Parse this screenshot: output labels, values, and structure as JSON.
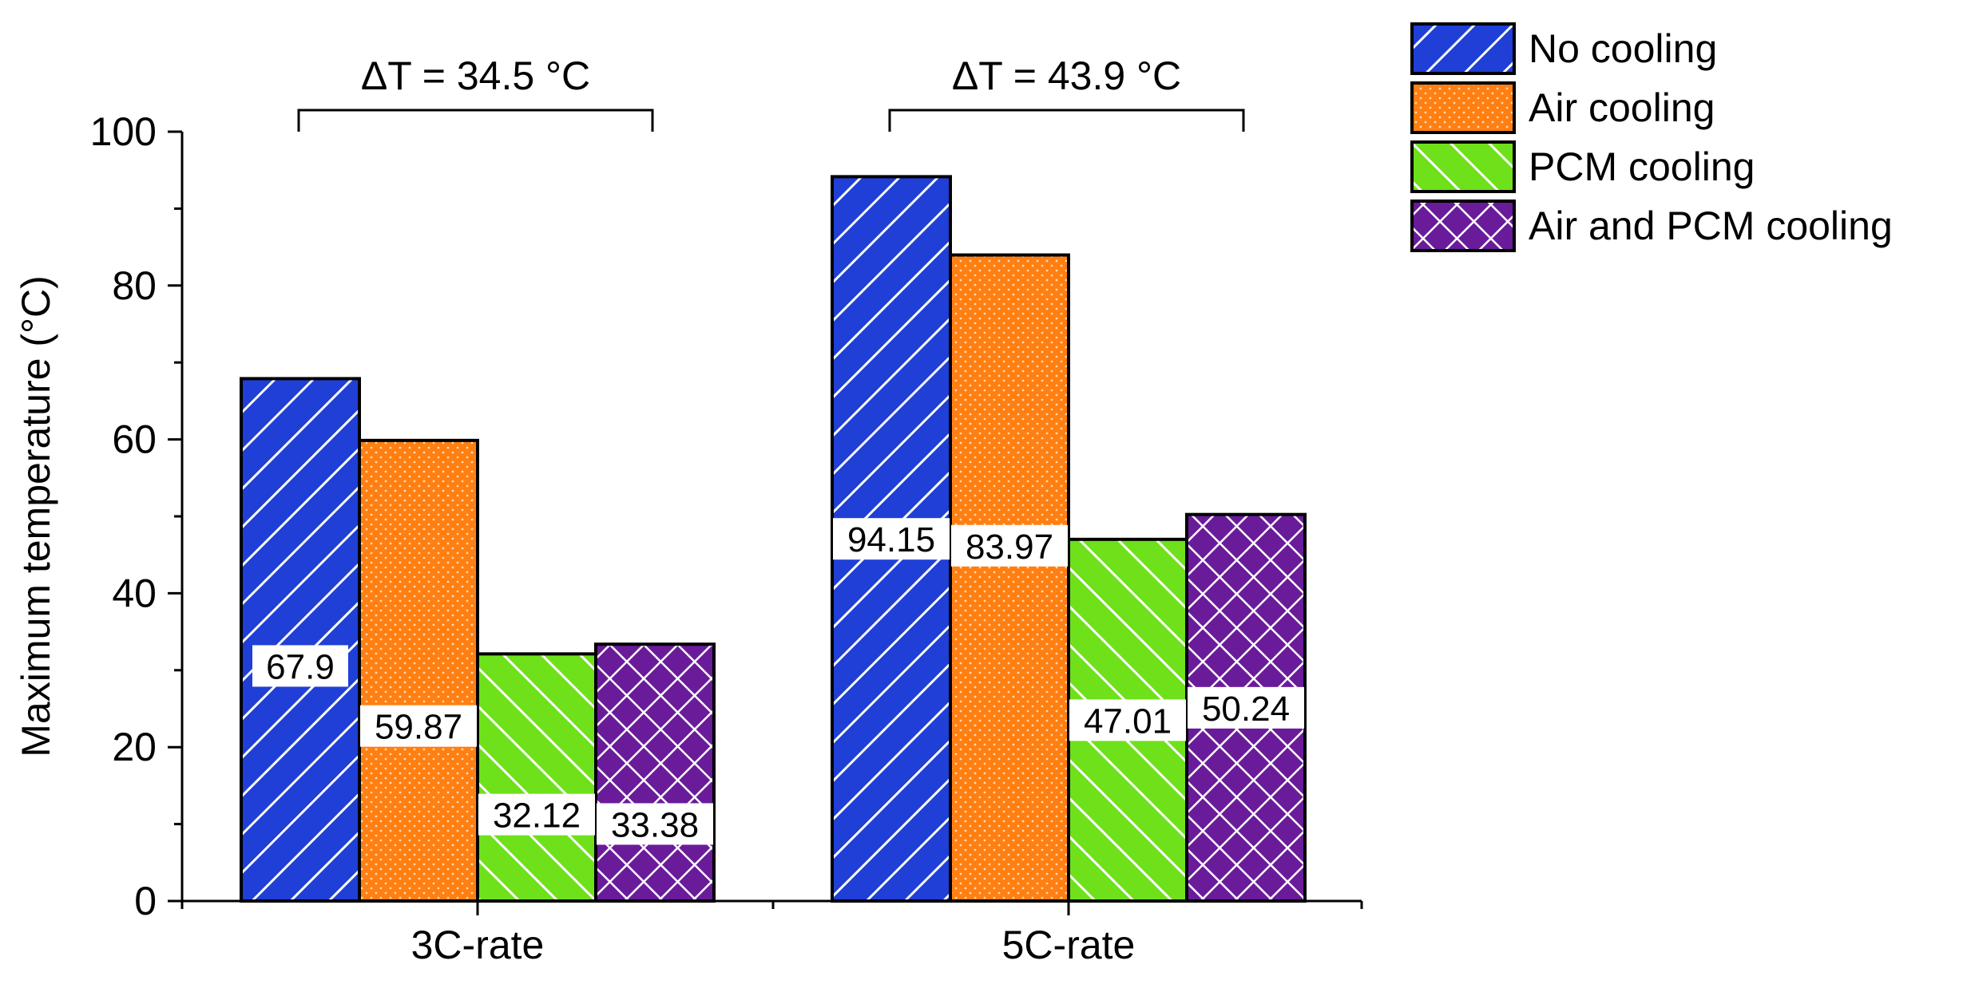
{
  "chart_data": {
    "type": "bar",
    "title": "",
    "xlabel": "",
    "ylabel": "Maximum temperature (°C)",
    "ylim": [
      0,
      100
    ],
    "yticks": [
      "0",
      "20",
      "40",
      "60",
      "80",
      "100"
    ],
    "categories": [
      "3C-rate",
      "5C-rate"
    ],
    "series": [
      {
        "name": "No cooling",
        "values": [
          67.9,
          94.15
        ],
        "labels": [
          "67.9",
          "94.15"
        ],
        "color": "#1f3fd6",
        "pattern": "diagonal-hatch-right"
      },
      {
        "name": "Air cooling",
        "values": [
          59.87,
          83.97
        ],
        "labels": [
          "59.87",
          "83.97"
        ],
        "color": "#ff7f12",
        "pattern": "dots"
      },
      {
        "name": "PCM cooling",
        "values": [
          32.12,
          47.01
        ],
        "labels": [
          "32.12",
          "47.01"
        ],
        "color": "#6ee11a",
        "pattern": "diagonal-hatch-left"
      },
      {
        "name": "Air and PCM cooling",
        "values": [
          33.38,
          50.24
        ],
        "labels": [
          "33.38",
          "50.24"
        ],
        "color": "#6a1b9a",
        "pattern": "crosshatch"
      }
    ],
    "annotations": [
      {
        "text": "ΔT = 34.5 °C",
        "category": "3C-rate"
      },
      {
        "text": "ΔT = 43.9 °C",
        "category": "5C-rate"
      }
    ],
    "legend": "top-right",
    "grid": false
  }
}
